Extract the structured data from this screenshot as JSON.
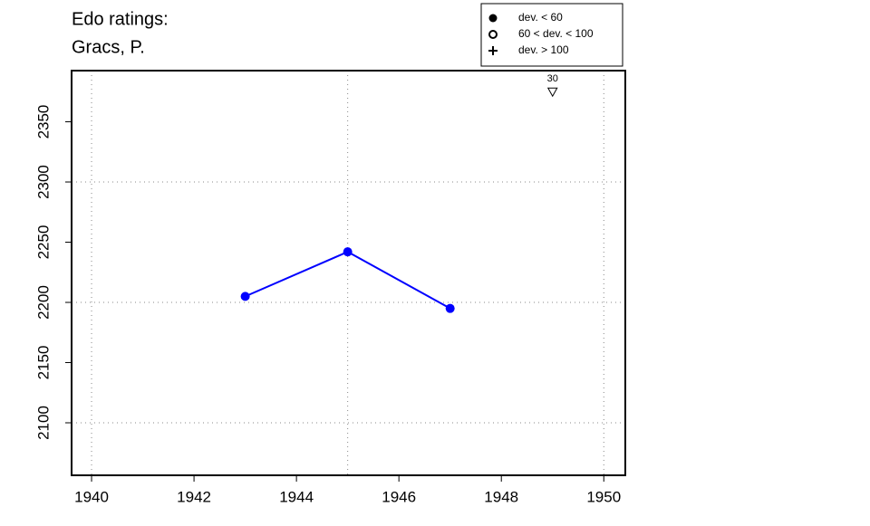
{
  "chart_data": {
    "type": "line",
    "title": "Edo ratings:",
    "subtitle": "Gracs, P.",
    "x": [
      1943,
      1945,
      1947
    ],
    "series": [
      {
        "name": "dev. < 60",
        "color": "#0000ff",
        "values": [
          2205,
          2242,
          2195
        ]
      }
    ],
    "xlim": [
      1939.61,
      1950.42
    ],
    "ylim": [
      2056.4,
      2392.5
    ],
    "xticks": [
      1940,
      1942,
      1944,
      1946,
      1948,
      1950
    ],
    "yticks": [
      2100,
      2150,
      2200,
      2250,
      2300,
      2350
    ],
    "xgrid": [
      1940,
      1945,
      1950
    ],
    "ygrid": [
      2100,
      2200,
      2300
    ],
    "annotations": [
      {
        "x": 1949,
        "y": 2375,
        "label": "30"
      }
    ],
    "legend": {
      "position": "top-right",
      "entries": [
        {
          "symbol": "filled-circle",
          "label": "dev. < 60"
        },
        {
          "symbol": "open-circle",
          "label": "60 < dev. < 100"
        },
        {
          "symbol": "plus",
          "label": "dev. > 100"
        }
      ]
    }
  }
}
